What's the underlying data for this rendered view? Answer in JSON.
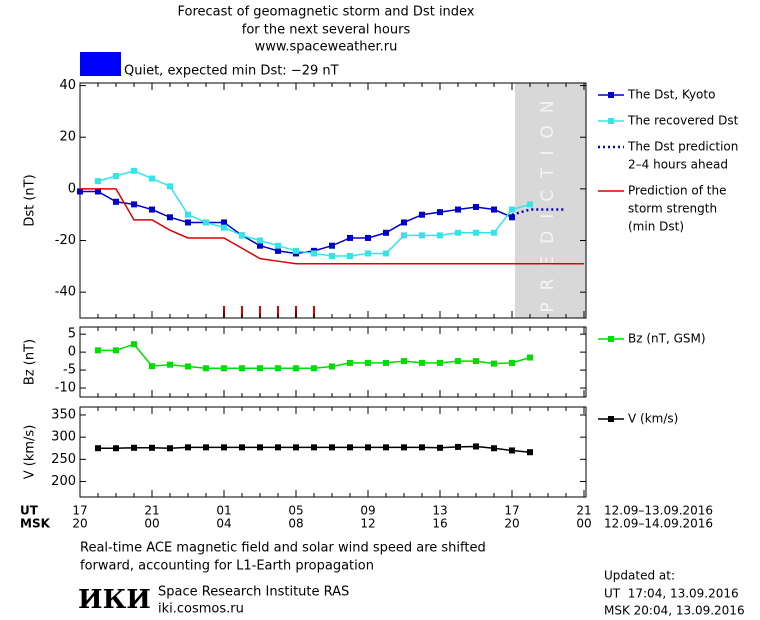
{
  "header": {
    "title_lines": [
      "Forecast of geomagnetic storm and Dst index",
      "for the next several hours",
      "www.spaceweather.ru"
    ],
    "status": {
      "text": "Quiet, expected min Dst: −29 nT",
      "color": "#0000ff"
    }
  },
  "time_axis": {
    "ut_label": "UT",
    "ut_categories": [
      "17",
      null,
      null,
      null,
      "21",
      null,
      null,
      null,
      "01",
      null,
      null,
      null,
      "05",
      null,
      null,
      null,
      "09",
      null,
      null,
      null,
      "13",
      null,
      null,
      null,
      "17",
      null,
      null,
      null,
      "21"
    ],
    "ut_range": "12.09–13.09.2016",
    "msk_label": "MSK",
    "msk_categories": [
      "20",
      null,
      null,
      null,
      "00",
      null,
      null,
      null,
      "04",
      null,
      null,
      null,
      "08",
      null,
      null,
      null,
      "12",
      null,
      null,
      null,
      "16",
      null,
      null,
      null,
      "20",
      null,
      null,
      null,
      "00"
    ],
    "msk_range": "12.09–14.09.2016"
  },
  "chart_data": [
    {
      "type": "line",
      "ylabel": "Dst (nT)",
      "ylim": [
        -50,
        41
      ],
      "yticks": [
        40,
        20,
        0,
        -20,
        -40
      ],
      "prediction_label": "PREDICTION",
      "series": [
        {
          "name": [
            "The Dst, Kyoto"
          ],
          "color": "#0000cc",
          "marker": "square",
          "style": "solid",
          "values": [
            -1,
            -1,
            -5,
            -6,
            -8,
            -11,
            -13,
            -13,
            -13,
            -18,
            -22,
            -24,
            -25,
            -24,
            -22,
            -19,
            -19,
            -17,
            -13,
            -10,
            -9,
            -8,
            -7,
            -8,
            -11,
            null,
            null,
            null,
            null
          ]
        },
        {
          "name": [
            "The recovered Dst"
          ],
          "color": "#33e6e6",
          "marker": "square",
          "style": "solid",
          "values": [
            null,
            3,
            5,
            7,
            4,
            1,
            -10,
            -13,
            -15,
            -18,
            -20,
            -22,
            -24,
            -25,
            -26,
            -26,
            -25,
            -25,
            -18,
            -18,
            -18,
            -17,
            -17,
            -17,
            -8,
            -6,
            null,
            null,
            null
          ]
        },
        {
          "name": [
            "The Dst prediction",
            "2–4 hours ahead"
          ],
          "color": "#0000cc",
          "marker": null,
          "style": "dotted",
          "values": [
            null,
            null,
            null,
            null,
            null,
            null,
            null,
            null,
            null,
            null,
            null,
            null,
            null,
            null,
            null,
            null,
            null,
            null,
            null,
            null,
            null,
            null,
            null,
            null,
            -10,
            -8,
            -8,
            -8,
            null
          ]
        },
        {
          "name": [
            "Prediction of the",
            "storm strength",
            "(min Dst)"
          ],
          "color": "#dd0000",
          "marker": null,
          "style": "solid",
          "values": [
            0,
            0,
            0,
            -12,
            -12,
            -16,
            -19,
            -19,
            -19,
            -23,
            -27,
            -28,
            -29,
            -29,
            -29,
            -29,
            -29,
            -29,
            -29,
            -29,
            -29,
            -29,
            -29,
            -29,
            -29,
            -29,
            -29,
            -29,
            -29
          ]
        }
      ]
    },
    {
      "type": "line",
      "ylabel": "Bz (nT)",
      "ylim": [
        -12.5,
        7
      ],
      "yticks": [
        5,
        0,
        -5,
        -10
      ],
      "series": [
        {
          "name": [
            "Bz (nT, GSM)"
          ],
          "color": "#00dd00",
          "marker": "square",
          "style": "solid",
          "values": [
            null,
            0.5,
            0.5,
            2.2,
            -3.9,
            -3.5,
            -4,
            -4.5,
            -4.5,
            -4.5,
            -4.5,
            -4.5,
            -4.5,
            -4.5,
            -4,
            -3,
            -3,
            -3,
            -2.5,
            -3,
            -3,
            -2.5,
            -2.5,
            -3.2,
            -3,
            -1.5,
            null,
            null,
            null
          ]
        }
      ]
    },
    {
      "type": "line",
      "ylabel": "V (km/s)",
      "ylim": [
        165,
        368
      ],
      "yticks": [
        350,
        300,
        250,
        200
      ],
      "series": [
        {
          "name": [
            "V (km/s)"
          ],
          "color": "#000000",
          "marker": "square",
          "style": "solid",
          "values": [
            null,
            275,
            275,
            276,
            276,
            275,
            277,
            277,
            277,
            277,
            277,
            277,
            277,
            277,
            277,
            277,
            277,
            277,
            277,
            277,
            276,
            278,
            279,
            275,
            270,
            266,
            null,
            null,
            null
          ]
        }
      ]
    }
  ],
  "footer": {
    "note_lines": [
      "Real-time ACE magnetic field and solar wind speed are shifted",
      "forward, accounting for L1-Earth propagation"
    ],
    "logo": "ИКИ",
    "institute": "Space Research Institute RAS",
    "site": "iki.cosmos.ru",
    "updated_label": "Updated at:",
    "updated_ut": "UT  17:04, 13.09.2016",
    "updated_msk": "MSK 20:04, 13.09.2016"
  }
}
